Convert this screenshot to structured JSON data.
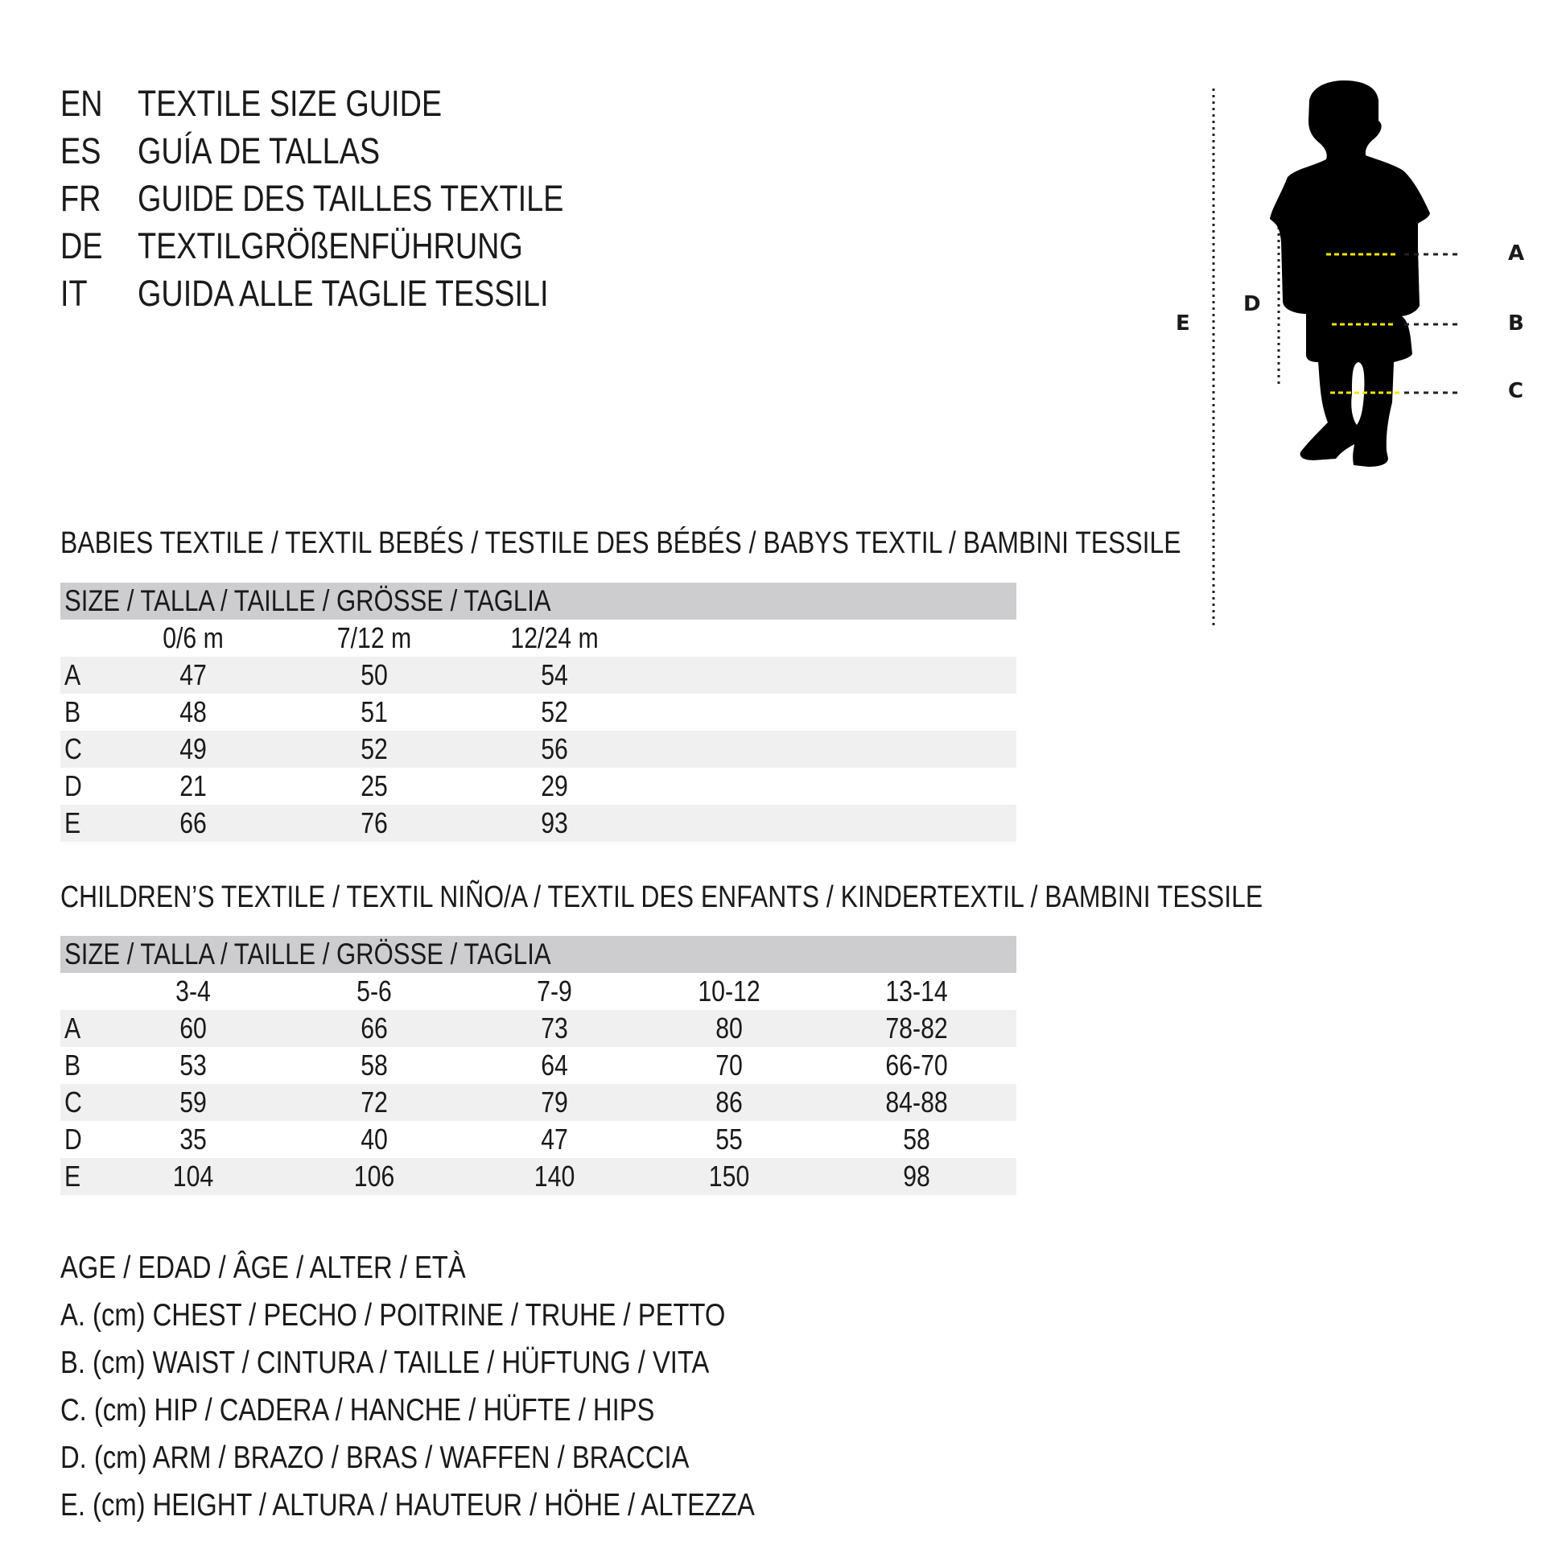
{
  "header": [
    {
      "code": "EN",
      "text": "TEXTILE SIZE GUIDE"
    },
    {
      "code": "ES",
      "text": "GUÍA DE TALLAS"
    },
    {
      "code": "FR",
      "text": "GUIDE DES TAILLES TEXTILE"
    },
    {
      "code": "DE",
      "text": "TEXTILGRÖßENFÜHRUNG"
    },
    {
      "code": "IT",
      "text": "GUIDA ALLE TAGLIE TESSILI"
    }
  ],
  "figure": {
    "labels": {
      "a": "A",
      "b": "B",
      "c": "C",
      "d": "D",
      "e": "E"
    },
    "accent": "#f2e600"
  },
  "babies": {
    "title": "BABIES TEXTILE / TEXTIL BEBÉS / TESTILE DES BÉBÉS / BABYS TEXTIL / BAMBINI TESSILE",
    "size_label": "SIZE / TALLA / TAILLE / GRÖSSE / TAGLIA",
    "columns": [
      "0/6 m",
      "7/12 m",
      "12/24 m"
    ],
    "rows": [
      {
        "label": "A",
        "values": [
          "47",
          "50",
          "54"
        ]
      },
      {
        "label": "B",
        "values": [
          "48",
          "51",
          "52"
        ]
      },
      {
        "label": "C",
        "values": [
          "49",
          "52",
          "56"
        ]
      },
      {
        "label": "D",
        "values": [
          "21",
          "25",
          "29"
        ]
      },
      {
        "label": "E",
        "values": [
          "66",
          "76",
          "93"
        ]
      }
    ]
  },
  "children": {
    "title": "CHILDREN’S TEXTILE / TEXTIL NIÑO/A / TEXTIL DES ENFANTS / KINDERTEXTIL / BAMBINI TESSILE",
    "size_label": "SIZE / TALLA / TAILLE / GRÖSSE / TAGLIA",
    "columns": [
      "3-4",
      "5-6",
      "7-9",
      "10-12",
      "13-14"
    ],
    "rows": [
      {
        "label": "A",
        "values": [
          "60",
          "66",
          "73",
          "80",
          "78-82"
        ]
      },
      {
        "label": "B",
        "values": [
          "53",
          "58",
          "64",
          "70",
          "66-70"
        ]
      },
      {
        "label": "C",
        "values": [
          "59",
          "72",
          "79",
          "86",
          "84-88"
        ]
      },
      {
        "label": "D",
        "values": [
          "35",
          "40",
          "47",
          "55",
          "58"
        ]
      },
      {
        "label": "E",
        "values": [
          "104",
          "106",
          "140",
          "150",
          "98"
        ]
      }
    ]
  },
  "legend": [
    "AGE / EDAD / ÂGE / ALTER / ETÀ",
    "A. (cm) CHEST / PECHO / POITRINE / TRUHE / PETTO",
    "B. (cm) WAIST / CINTURA / TAILLE / HÜFTUNG / VITA",
    "C. (cm) HIP / CADERA / HANCHE / HÜFTE / HIPS",
    "D. (cm) ARM / BRAZO / BRAS / WAFFEN / BRACCIA",
    "E. (cm) HEIGHT / ALTURA / HAUTEUR / HÖHE / ALTEZZA"
  ]
}
